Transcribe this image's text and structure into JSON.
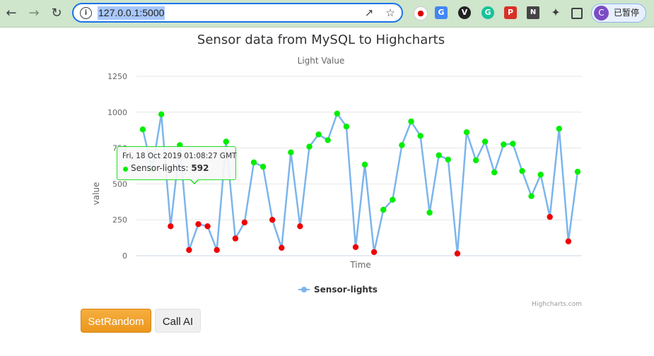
{
  "browser": {
    "url": "127.0.0.1:5000",
    "profile_initial": "C",
    "profile_status": "已暂停",
    "extensions": [
      "record-icon",
      "translate-icon",
      "vpn-icon",
      "grammarly-icon",
      "pdf-icon",
      "nn-icon",
      "puzzle-icon",
      "sidepanel-icon"
    ]
  },
  "chart_data": {
    "type": "line",
    "title": "Sensor data from MySQL to Highcharts",
    "subtitle": "Light Value",
    "xlabel": "Time",
    "ylabel": "value",
    "ylim": [
      0,
      1250
    ],
    "yticks": [
      0,
      250,
      500,
      750,
      1000,
      1250
    ],
    "grid": true,
    "legend_position": "bottom-center",
    "credits": "Highcharts.com",
    "line_color": "#7cb5ec",
    "high_color": "#00ee00",
    "low_color": "#ee0000",
    "threshold": 300,
    "series": [
      {
        "name": "Sensor-lights",
        "values": [
          880,
          600,
          985,
          205,
          770,
          40,
          220,
          205,
          40,
          795,
          120,
          232,
          650,
          620,
          250,
          55,
          720,
          205,
          760,
          845,
          805,
          990,
          900,
          60,
          635,
          25,
          320,
          390,
          770,
          935,
          835,
          300,
          700,
          670,
          15,
          860,
          665,
          795,
          580,
          775,
          780,
          590,
          415,
          565,
          270,
          885,
          100,
          585
        ]
      }
    ]
  },
  "tooltip": {
    "time": "Fri, 18 Oct 2019 01:08:27 GMT",
    "series": "Sensor-lights",
    "value": "592"
  },
  "buttons": {
    "set_random": "SetRandom",
    "call_ai": "Call AI"
  }
}
